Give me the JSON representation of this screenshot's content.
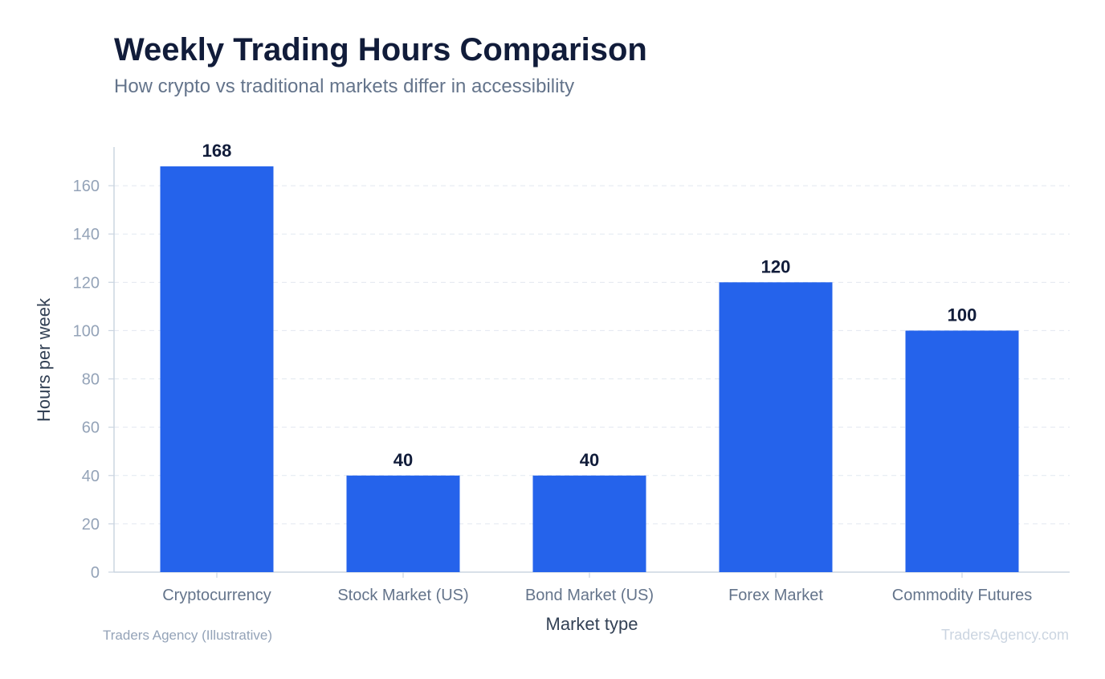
{
  "chart_data": {
    "type": "bar",
    "title": "Weekly Trading Hours Comparison",
    "subtitle": "How crypto vs traditional markets differ in accessibility",
    "xlabel": "Market type",
    "ylabel": "Hours per week",
    "categories": [
      "Cryptocurrency",
      "Stock Market (US)",
      "Bond Market (US)",
      "Forex Market",
      "Commodity Futures"
    ],
    "values": [
      168,
      40,
      40,
      120,
      100
    ],
    "data_labels": [
      "168",
      "40",
      "40",
      "120",
      "100"
    ],
    "ylim": [
      0,
      176
    ],
    "yticks": [
      0,
      20,
      40,
      60,
      80,
      100,
      120,
      140,
      160
    ],
    "ytick_labels": [
      "0",
      "20",
      "40",
      "60",
      "80",
      "100",
      "120",
      "140",
      "160"
    ],
    "grid": true,
    "legend": "none",
    "bar_color": "#2563eb"
  },
  "footer": {
    "source": "Traders Agency (Illustrative)",
    "watermark": "TradersAgency.com"
  },
  "colors": {
    "bar": "#2563eb",
    "grid": "#e2e8f0",
    "axis": "#cbd5e1"
  }
}
